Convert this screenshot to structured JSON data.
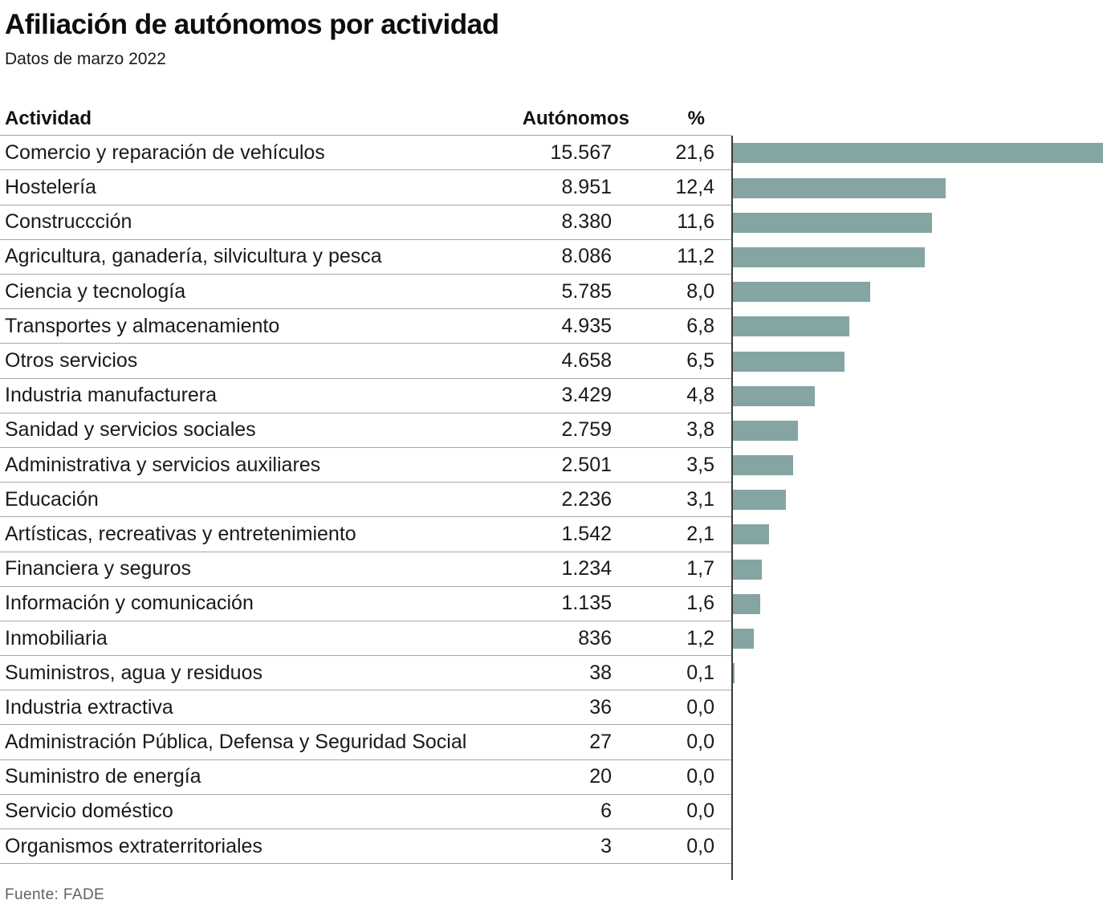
{
  "header": {
    "title": "Afiliación de autónomos por actividad",
    "subtitle": "Datos de marzo 2022"
  },
  "table": {
    "columns": [
      "Actividad",
      "Autónomos",
      "%"
    ]
  },
  "rows": [
    {
      "actividad": "Comercio y reparación de vehículos",
      "autonomos": "15.567",
      "pct": "21,6",
      "pct_value": 21.6
    },
    {
      "actividad": "Hostelería",
      "autonomos": "8.951",
      "pct": "12,4",
      "pct_value": 12.4
    },
    {
      "actividad": "Construccción",
      "autonomos": "8.380",
      "pct": "11,6",
      "pct_value": 11.6
    },
    {
      "actividad": "Agricultura, ganadería, silvicultura y pesca",
      "autonomos": "8.086",
      "pct": "11,2",
      "pct_value": 11.2
    },
    {
      "actividad": "Ciencia y tecnología",
      "autonomos": "5.785",
      "pct": "8,0",
      "pct_value": 8.0
    },
    {
      "actividad": "Transportes y almacenamiento",
      "autonomos": "4.935",
      "pct": "6,8",
      "pct_value": 6.8
    },
    {
      "actividad": "Otros servicios",
      "autonomos": "4.658",
      "pct": "6,5",
      "pct_value": 6.5
    },
    {
      "actividad": "Industria manufacturera",
      "autonomos": "3.429",
      "pct": "4,8",
      "pct_value": 4.8
    },
    {
      "actividad": "Sanidad y servicios sociales",
      "autonomos": "2.759",
      "pct": "3,8",
      "pct_value": 3.8
    },
    {
      "actividad": "Administrativa y servicios auxiliares",
      "autonomos": "2.501",
      "pct": "3,5",
      "pct_value": 3.5
    },
    {
      "actividad": "Educación",
      "autonomos": "2.236",
      "pct": "3,1",
      "pct_value": 3.1
    },
    {
      "actividad": "Artísticas, recreativas y entretenimiento",
      "autonomos": "1.542",
      "pct": "2,1",
      "pct_value": 2.1
    },
    {
      "actividad": "Financiera y seguros",
      "autonomos": "1.234",
      "pct": "1,7",
      "pct_value": 1.7
    },
    {
      "actividad": "Información y comunicación",
      "autonomos": "1.135",
      "pct": "1,6",
      "pct_value": 1.6
    },
    {
      "actividad": "Inmobiliaria",
      "autonomos": "836",
      "pct": "1,2",
      "pct_value": 1.2
    },
    {
      "actividad": "Suministros, agua y residuos",
      "autonomos": "38",
      "pct": "0,1",
      "pct_value": 0.1
    },
    {
      "actividad": "Industria extractiva",
      "autonomos": "36",
      "pct": "0,0",
      "pct_value": 0.0
    },
    {
      "actividad": "Administración Pública, Defensa y Seguridad Social",
      "autonomos": "27",
      "pct": "0,0",
      "pct_value": 0.0
    },
    {
      "actividad": "Suministro de energía",
      "autonomos": "20",
      "pct": "0,0",
      "pct_value": 0.0
    },
    {
      "actividad": "Servicio doméstico",
      "autonomos": "6",
      "pct": "0,0",
      "pct_value": 0.0
    },
    {
      "actividad": "Organismos extraterritoriales",
      "autonomos": "3",
      "pct": "0,0",
      "pct_value": 0.0
    }
  ],
  "chart_data": {
    "type": "bar",
    "orientation": "horizontal",
    "title": "Afiliación de autónomos por actividad",
    "subtitle": "Datos de marzo 2022",
    "categories": [
      "Comercio y reparación de vehículos",
      "Hostelería",
      "Construccción",
      "Agricultura, ganadería, silvicultura y pesca",
      "Ciencia y tecnología",
      "Transportes y almacenamiento",
      "Otros servicios",
      "Industria manufacturera",
      "Sanidad y servicios sociales",
      "Administrativa y servicios auxiliares",
      "Educación",
      "Artísticas, recreativas y entretenimiento",
      "Financiera y seguros",
      "Información y comunicación",
      "Inmobiliaria",
      "Suministros, agua y residuos",
      "Industria extractiva",
      "Administración Pública, Defensa y Seguridad Social",
      "Suministro de energía",
      "Servicio doméstico",
      "Organismos extraterritoriales"
    ],
    "series": [
      {
        "name": "Autónomos",
        "values": [
          15567,
          8951,
          8380,
          8086,
          5785,
          4935,
          4658,
          3429,
          2759,
          2501,
          2236,
          1542,
          1234,
          1135,
          836,
          38,
          36,
          27,
          20,
          6,
          3
        ]
      },
      {
        "name": "%",
        "values": [
          21.6,
          12.4,
          11.6,
          11.2,
          8.0,
          6.8,
          6.5,
          4.8,
          3.8,
          3.5,
          3.1,
          2.1,
          1.7,
          1.6,
          1.2,
          0.1,
          0.0,
          0.0,
          0.0,
          0.0,
          0.0
        ]
      }
    ],
    "xlim": [
      0,
      21.6
    ],
    "grid": false,
    "legend": false,
    "bar_color": "#85a5a3",
    "axis_color": "#3a3a3a"
  },
  "footer": {
    "source": "Fuente: FADE"
  }
}
